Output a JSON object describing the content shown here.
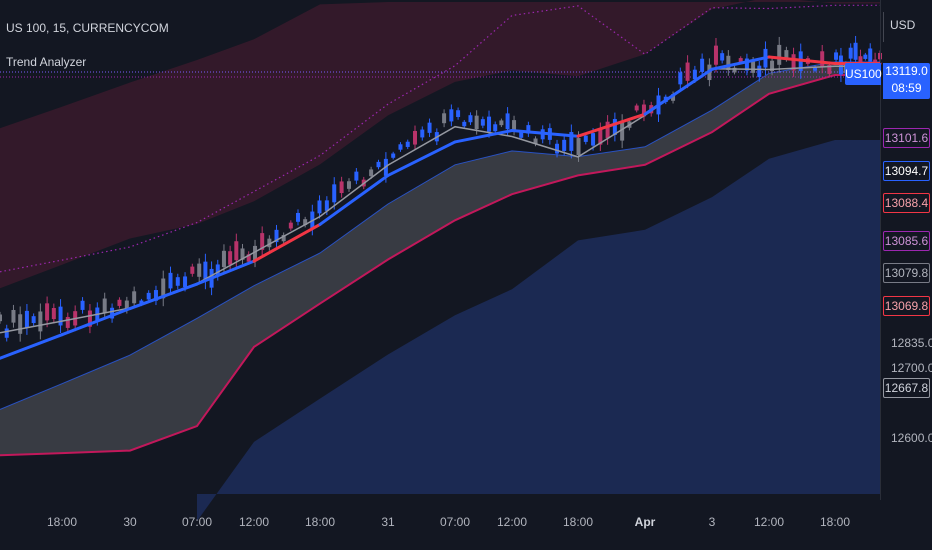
{
  "header": {
    "symbol_line": "US 100, 15, CURRENCYCOM",
    "indicator_name": "Trend Analyzer"
  },
  "price_axis": {
    "currency": "USD",
    "ticks": [
      "12835.0",
      "12700.0",
      "12600.0"
    ],
    "symbol_tag": "US100",
    "current_price": "13119.0",
    "countdown": "08:59",
    "level_boxes": [
      {
        "label": "13101.6",
        "color": "#9c27b0",
        "text_color": "#ce93d8"
      },
      {
        "label": "13094.7",
        "color": "#2962ff",
        "text_color": "#ffffff"
      },
      {
        "label": "13088.4",
        "color": "#f23645",
        "text_color": "#f7a1aa"
      },
      {
        "label": "13085.6",
        "color": "#9c27b0",
        "text_color": "#ce93d8"
      },
      {
        "label": "13079.8",
        "color": "#787b86",
        "text_color": "#b2b5be"
      },
      {
        "label": "13069.8",
        "color": "#f23645",
        "text_color": "#f7a1aa"
      },
      {
        "label": "12667.8",
        "color": "#9598a1",
        "text_color": "#d1d4dc"
      }
    ]
  },
  "time_axis": {
    "ticks": [
      "18:00",
      "30",
      "07:00",
      "12:00",
      "18:00",
      "31",
      "07:00",
      "12:00",
      "18:00",
      "Apr",
      "3",
      "12:00",
      "18:00"
    ]
  },
  "colors": {
    "background": "#131722",
    "upper_band_fill": "#3a1a2c",
    "lower_band_fill": "#1b2a55",
    "cloud_fill": "#3d3f47",
    "cloud_edge": "#2962ff",
    "baseline": "#c2185b",
    "trend_up": "#2962ff",
    "trend_down": "#f23645",
    "mid_line": "#9598a1",
    "dotted": "#9c27b0"
  },
  "chart_data": {
    "type": "line",
    "title": "US 100, 15, CURRENCYCOM",
    "xlabel": "",
    "ylabel": "USD",
    "x": [
      "18:00",
      "30",
      "07:00",
      "12:00",
      "18:00",
      "31",
      "07:00",
      "12:00",
      "18:00",
      "Apr",
      "3",
      "12:00",
      "18:00"
    ],
    "ylim": [
      12560,
      13160
    ],
    "grid": false,
    "series": [
      {
        "name": "",
        "kind": "price",
        "values": [
          12784,
          12800,
          12830,
          12868,
          12912,
          12975,
          13022,
          13010,
          12985,
          13036,
          13093,
          13092,
          13096
        ]
      },
      {
        "name": "",
        "kind": "trend",
        "values": [
          12760,
          12792,
          12822,
          12850,
          12895,
          12955,
          12996,
          13010,
          13003,
          13030,
          13085,
          13100,
          13092
        ]
      },
      {
        "name": "",
        "kind": "cloud_upper",
        "values": [
          12700,
          12735,
          12780,
          12820,
          12860,
          12920,
          12968,
          12985,
          12978,
          12990,
          13035,
          13080,
          13094
        ]
      },
      {
        "name": "",
        "kind": "baseline",
        "values": [
          12615,
          12618,
          12648,
          12745,
          12798,
          12852,
          12900,
          12932,
          12955,
          12968,
          13008,
          13055,
          13078
        ]
      }
    ]
  }
}
